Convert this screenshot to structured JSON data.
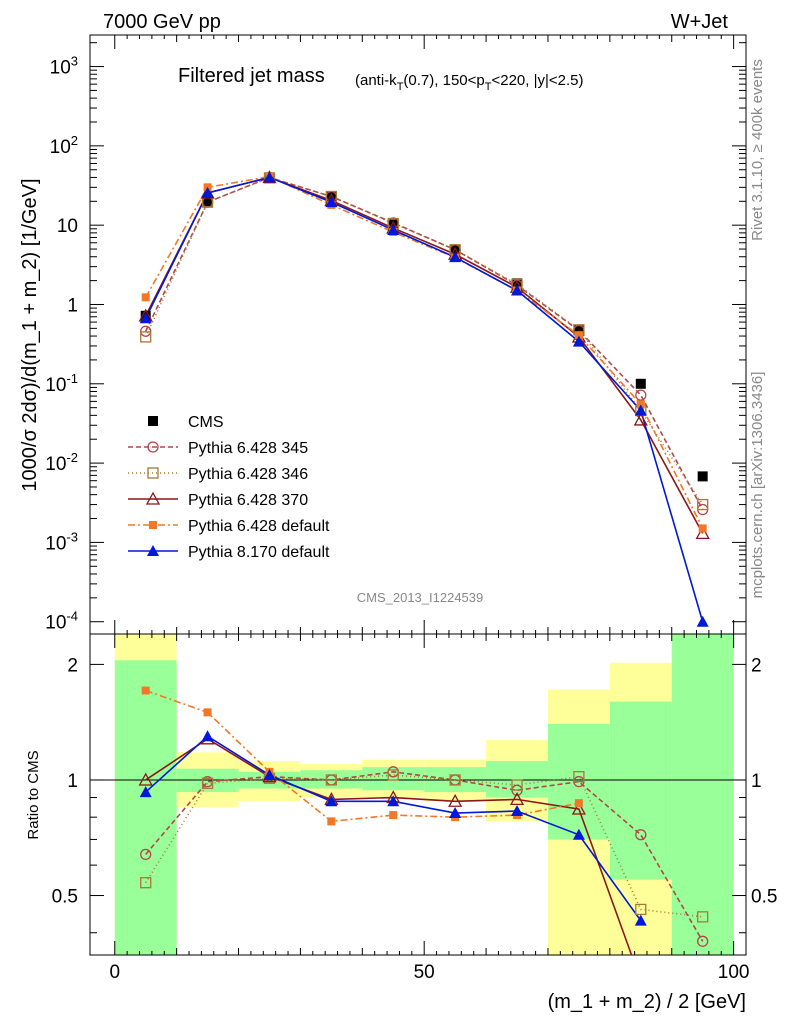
{
  "header": {
    "left": "7000 GeV pp",
    "right": "W+Jet"
  },
  "side_labels": {
    "rivet": "Rivet 3.1.10, ≥ 400k events",
    "mcplots": "mcplots.cern.ch [arXiv:1306.3436]"
  },
  "chart_data": [
    {
      "type": "line",
      "title": "Filtered jet mass",
      "subtitle": "(anti-kT(0.7), 150<pT<220, |y|<2.5)",
      "watermark": "CMS_2013_I1224539",
      "ylabel": "1000/σ 2dσ)/d(m_1 + m_2) [1/GeV]",
      "yscale": "log",
      "ylim": [
        7e-05,
        2500
      ],
      "xlim": [
        -4,
        102
      ],
      "yticks": [
        {
          "v": 0.0001,
          "b": "10",
          "e": "-4"
        },
        {
          "v": 0.001,
          "b": "10",
          "e": "-3"
        },
        {
          "v": 0.01,
          "b": "10",
          "e": "-2"
        },
        {
          "v": 0.1,
          "b": "10",
          "e": "-1"
        },
        {
          "v": 1,
          "b": "1",
          "e": ""
        },
        {
          "v": 10,
          "b": "10",
          "e": ""
        },
        {
          "v": 100,
          "b": "10",
          "e": "2"
        },
        {
          "v": 1000,
          "b": "10",
          "e": "3"
        }
      ],
      "x": [
        5,
        15,
        25,
        35,
        45,
        55,
        65,
        75,
        85,
        95
      ],
      "series": [
        {
          "name": "CMS",
          "color": "#000000",
          "marker": "square",
          "values": [
            0.72,
            20,
            39,
            23,
            10.2,
            4.9,
            1.85,
            0.47,
            0.1,
            0.0068
          ]
        },
        {
          "name": "Pythia 6.428 345",
          "color": "#b04848",
          "marker": "circle-open",
          "dash": "5,3",
          "values": [
            0.46,
            19.5,
            40,
            23,
            10.7,
            4.9,
            1.75,
            0.47,
            0.072,
            0.0026
          ]
        },
        {
          "name": "Pythia 6.428 346",
          "color": "#a87838",
          "marker": "square-open",
          "dash": "1,3",
          "values": [
            0.39,
            19.5,
            39.5,
            23,
            10.5,
            4.9,
            1.8,
            0.48,
            0.046,
            0.003
          ]
        },
        {
          "name": "Pythia 6.428 370",
          "color": "#8a1818",
          "marker": "triangle-open",
          "dash": "",
          "values": [
            0.72,
            25.5,
            40,
            20.5,
            9.2,
            4.3,
            1.65,
            0.39,
            0.035,
            0.0013
          ]
        },
        {
          "name": "Pythia 6.428 default",
          "color": "#f07828",
          "marker": "square-filled",
          "dash": "7,3,2,3",
          "values": [
            1.23,
            30,
            41,
            18,
            8.2,
            3.9,
            1.5,
            0.41,
            0.055,
            0.0015
          ]
        },
        {
          "name": "Pythia 8.170 default",
          "color": "#0018d8",
          "marker": "triangle-filled",
          "dash": "",
          "values": [
            0.67,
            25.5,
            40,
            19.5,
            8.7,
            3.95,
            1.5,
            0.34,
            0.046,
            0.0001
          ]
        }
      ]
    },
    {
      "type": "line",
      "xlabel": "(m_1 + m_2) / 2 [GeV]",
      "ylabel": "Ratio to CMS",
      "xlim": [
        -4,
        102
      ],
      "ylim": [
        0.35,
        2.4
      ],
      "xticks": [
        0,
        50,
        100
      ],
      "yticks": [
        0.5,
        1,
        2
      ],
      "bands": {
        "bins": [
          [
            0,
            10
          ],
          [
            10,
            20
          ],
          [
            20,
            30
          ],
          [
            30,
            40
          ],
          [
            40,
            50
          ],
          [
            50,
            60
          ],
          [
            60,
            70
          ],
          [
            70,
            80
          ],
          [
            80,
            90
          ],
          [
            90,
            100
          ]
        ],
        "yellow": [
          [
            0.3,
            3.0
          ],
          [
            0.85,
            1.18
          ],
          [
            0.88,
            1.12
          ],
          [
            0.9,
            1.1
          ],
          [
            0.9,
            1.13
          ],
          [
            0.88,
            1.13
          ],
          [
            0.78,
            1.27
          ],
          [
            0.3,
            1.72
          ],
          [
            0.3,
            2.02
          ],
          [
            0.3,
            3.0
          ]
        ],
        "green": [
          [
            0.3,
            2.05
          ],
          [
            0.93,
            1.07
          ],
          [
            0.95,
            1.05
          ],
          [
            0.95,
            1.06
          ],
          [
            0.94,
            1.08
          ],
          [
            0.93,
            1.08
          ],
          [
            0.9,
            1.12
          ],
          [
            0.7,
            1.4
          ],
          [
            0.55,
            1.6
          ],
          [
            0.3,
            3.0
          ]
        ]
      },
      "series": [
        {
          "name": "Pythia 6.428 345",
          "values": [
            0.64,
            0.99,
            1.02,
            1.0,
            1.05,
            1.0,
            0.94,
            0.99,
            0.72,
            0.38
          ]
        },
        {
          "name": "Pythia 6.428 346",
          "values": [
            0.54,
            0.98,
            1.01,
            1.0,
            1.03,
            1.0,
            0.97,
            1.02,
            0.46,
            0.44
          ]
        },
        {
          "name": "Pythia 6.428 370",
          "values": [
            1.0,
            1.28,
            1.02,
            0.89,
            0.9,
            0.88,
            0.89,
            0.84,
            0.3,
            null
          ]
        },
        {
          "name": "Pythia 6.428 default",
          "values": [
            1.71,
            1.5,
            1.05,
            0.78,
            0.81,
            0.8,
            0.81,
            0.87,
            null,
            null
          ]
        },
        {
          "name": "Pythia 8.170 default",
          "values": [
            0.93,
            1.3,
            1.03,
            0.88,
            0.88,
            0.82,
            0.83,
            0.72,
            0.43,
            null
          ]
        }
      ]
    }
  ]
}
